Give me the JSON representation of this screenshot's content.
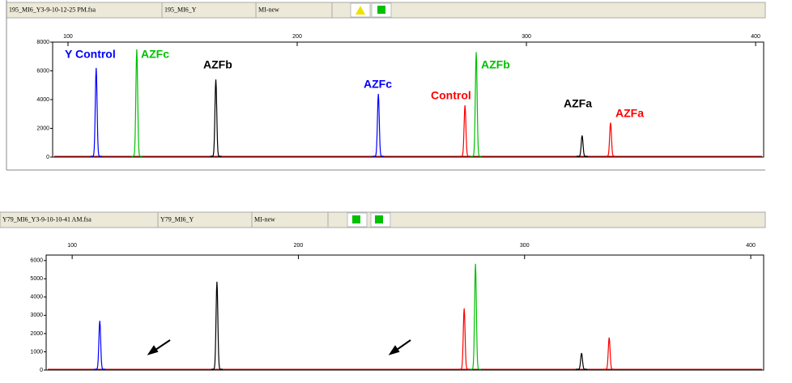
{
  "chart_data": [
    {
      "type": "electropherogram",
      "header": {
        "file": "195_MI6_Y3-9-10-12-25 PM.fsa",
        "sample": "195_MI6_Y",
        "panel": "MI-new"
      },
      "xlim": [
        93.3,
        403.5
      ],
      "xticks": [
        100,
        200,
        300,
        400
      ],
      "ylim": [
        0,
        8000
      ],
      "yticks": [
        0,
        2000,
        4000,
        6000,
        8000
      ],
      "peaks": [
        {
          "x": 112.3,
          "value": 6200,
          "color": "#0000ff",
          "label": "Y Control"
        },
        {
          "x": 130,
          "value": 7500,
          "color": "#00c000",
          "label": "AZFc"
        },
        {
          "x": 164.5,
          "value": 5400,
          "color": "#000000",
          "label": "AZFb"
        },
        {
          "x": 235.4,
          "value": 4400,
          "color": "#0000ff",
          "label": "AZFc"
        },
        {
          "x": 273.2,
          "value": 3600,
          "color": "#ff0000",
          "label": "Control"
        },
        {
          "x": 278.1,
          "value": 7300,
          "color": "#00c000",
          "label": "AZFb"
        },
        {
          "x": 324.3,
          "value": 1500,
          "color": "#000000",
          "label": "AZFa"
        },
        {
          "x": 336.7,
          "value": 2400,
          "color": "#ff0000",
          "label": "AZFa"
        }
      ]
    },
    {
      "type": "electropherogram",
      "header": {
        "file": "Y79_MI6_Y3-9-10-10-41 AM.fsa",
        "sample": "Y79_MI6_Y",
        "panel": "MI-new"
      },
      "xlim": [
        88.5,
        405.7
      ],
      "xticks": [
        100,
        200,
        300,
        400
      ],
      "ylim": [
        0,
        6300
      ],
      "yticks": [
        0,
        1000,
        2000,
        3000,
        4000,
        5000,
        6000
      ],
      "peaks": [
        {
          "x": 112.2,
          "value": 2700,
          "color": "#0000ff"
        },
        {
          "x": 164,
          "value": 4840,
          "color": "#000000"
        },
        {
          "x": 273.3,
          "value": 3380,
          "color": "#ff0000"
        },
        {
          "x": 278.3,
          "value": 5820,
          "color": "#00c000"
        },
        {
          "x": 325.2,
          "value": 930,
          "color": "#000000"
        },
        {
          "x": 337.4,
          "value": 1780,
          "color": "#ff0000"
        }
      ]
    }
  ]
}
